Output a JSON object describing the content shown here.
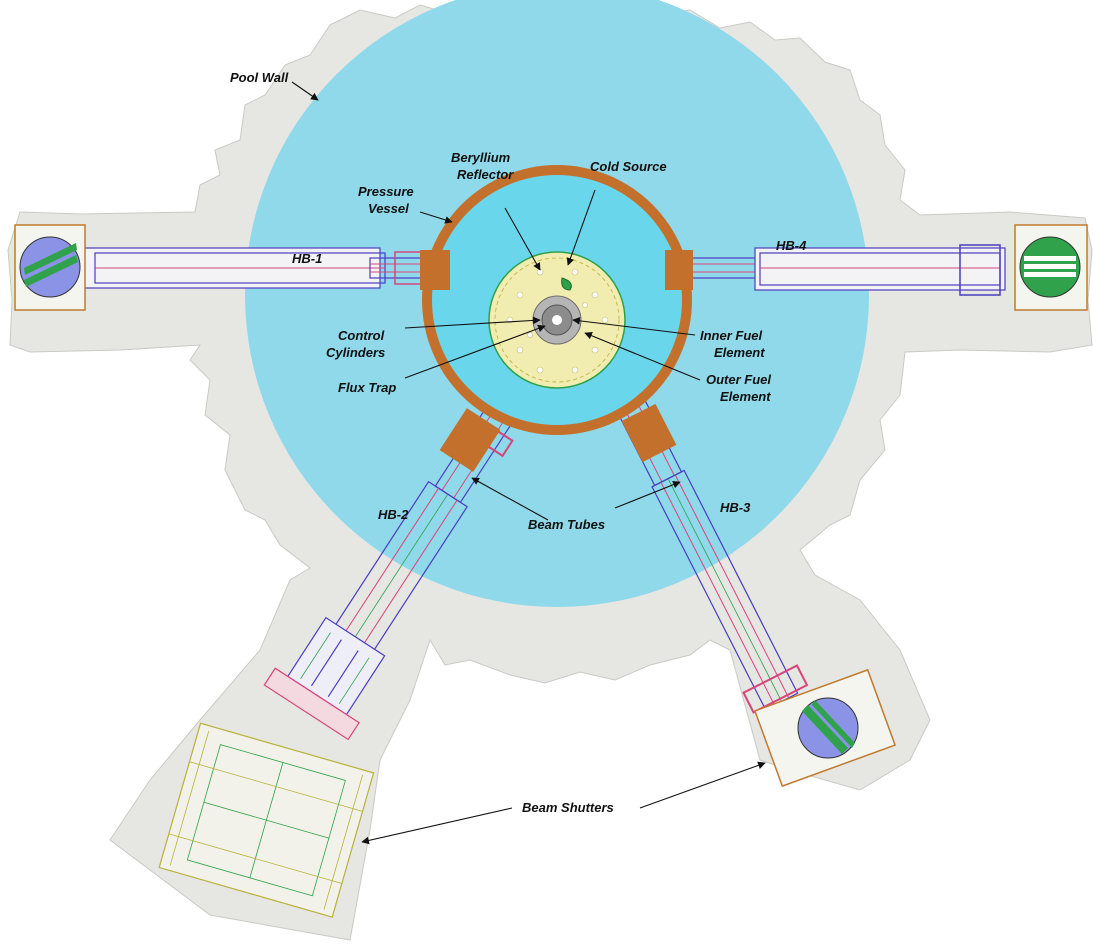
{
  "labels": {
    "pool_wall": "Pool Wall",
    "beryllium_reflector_1": "Beryllium",
    "beryllium_reflector_2": "Reflector",
    "cold_source": "Cold Source",
    "pressure_vessel_1": "Pressure",
    "pressure_vessel_2": "Vessel",
    "hb1": "HB-1",
    "hb2": "HB-2",
    "hb3": "HB-3",
    "hb4": "HB-4",
    "control_cylinders_1": "Control",
    "control_cylinders_2": "Cylinders",
    "flux_trap": "Flux Trap",
    "inner_fuel_1": "Inner Fuel",
    "inner_fuel_2": "Element",
    "outer_fuel_1": "Outer Fuel",
    "outer_fuel_2": "Element",
    "beam_tubes": "Beam Tubes",
    "beam_shutters": "Beam Shutters"
  },
  "colors": {
    "pool_water": "#8fd9ea",
    "pool_wall": "#e6e6e3",
    "pressure_vessel": "#c4702d",
    "vessel_interior": "#69d6ec",
    "reflector": "#f1ecb0",
    "core": "#a8a8a8",
    "tube_blue": "#4a3dbf",
    "tube_red": "#d8457a",
    "shutter_green": "#2fa04a"
  }
}
